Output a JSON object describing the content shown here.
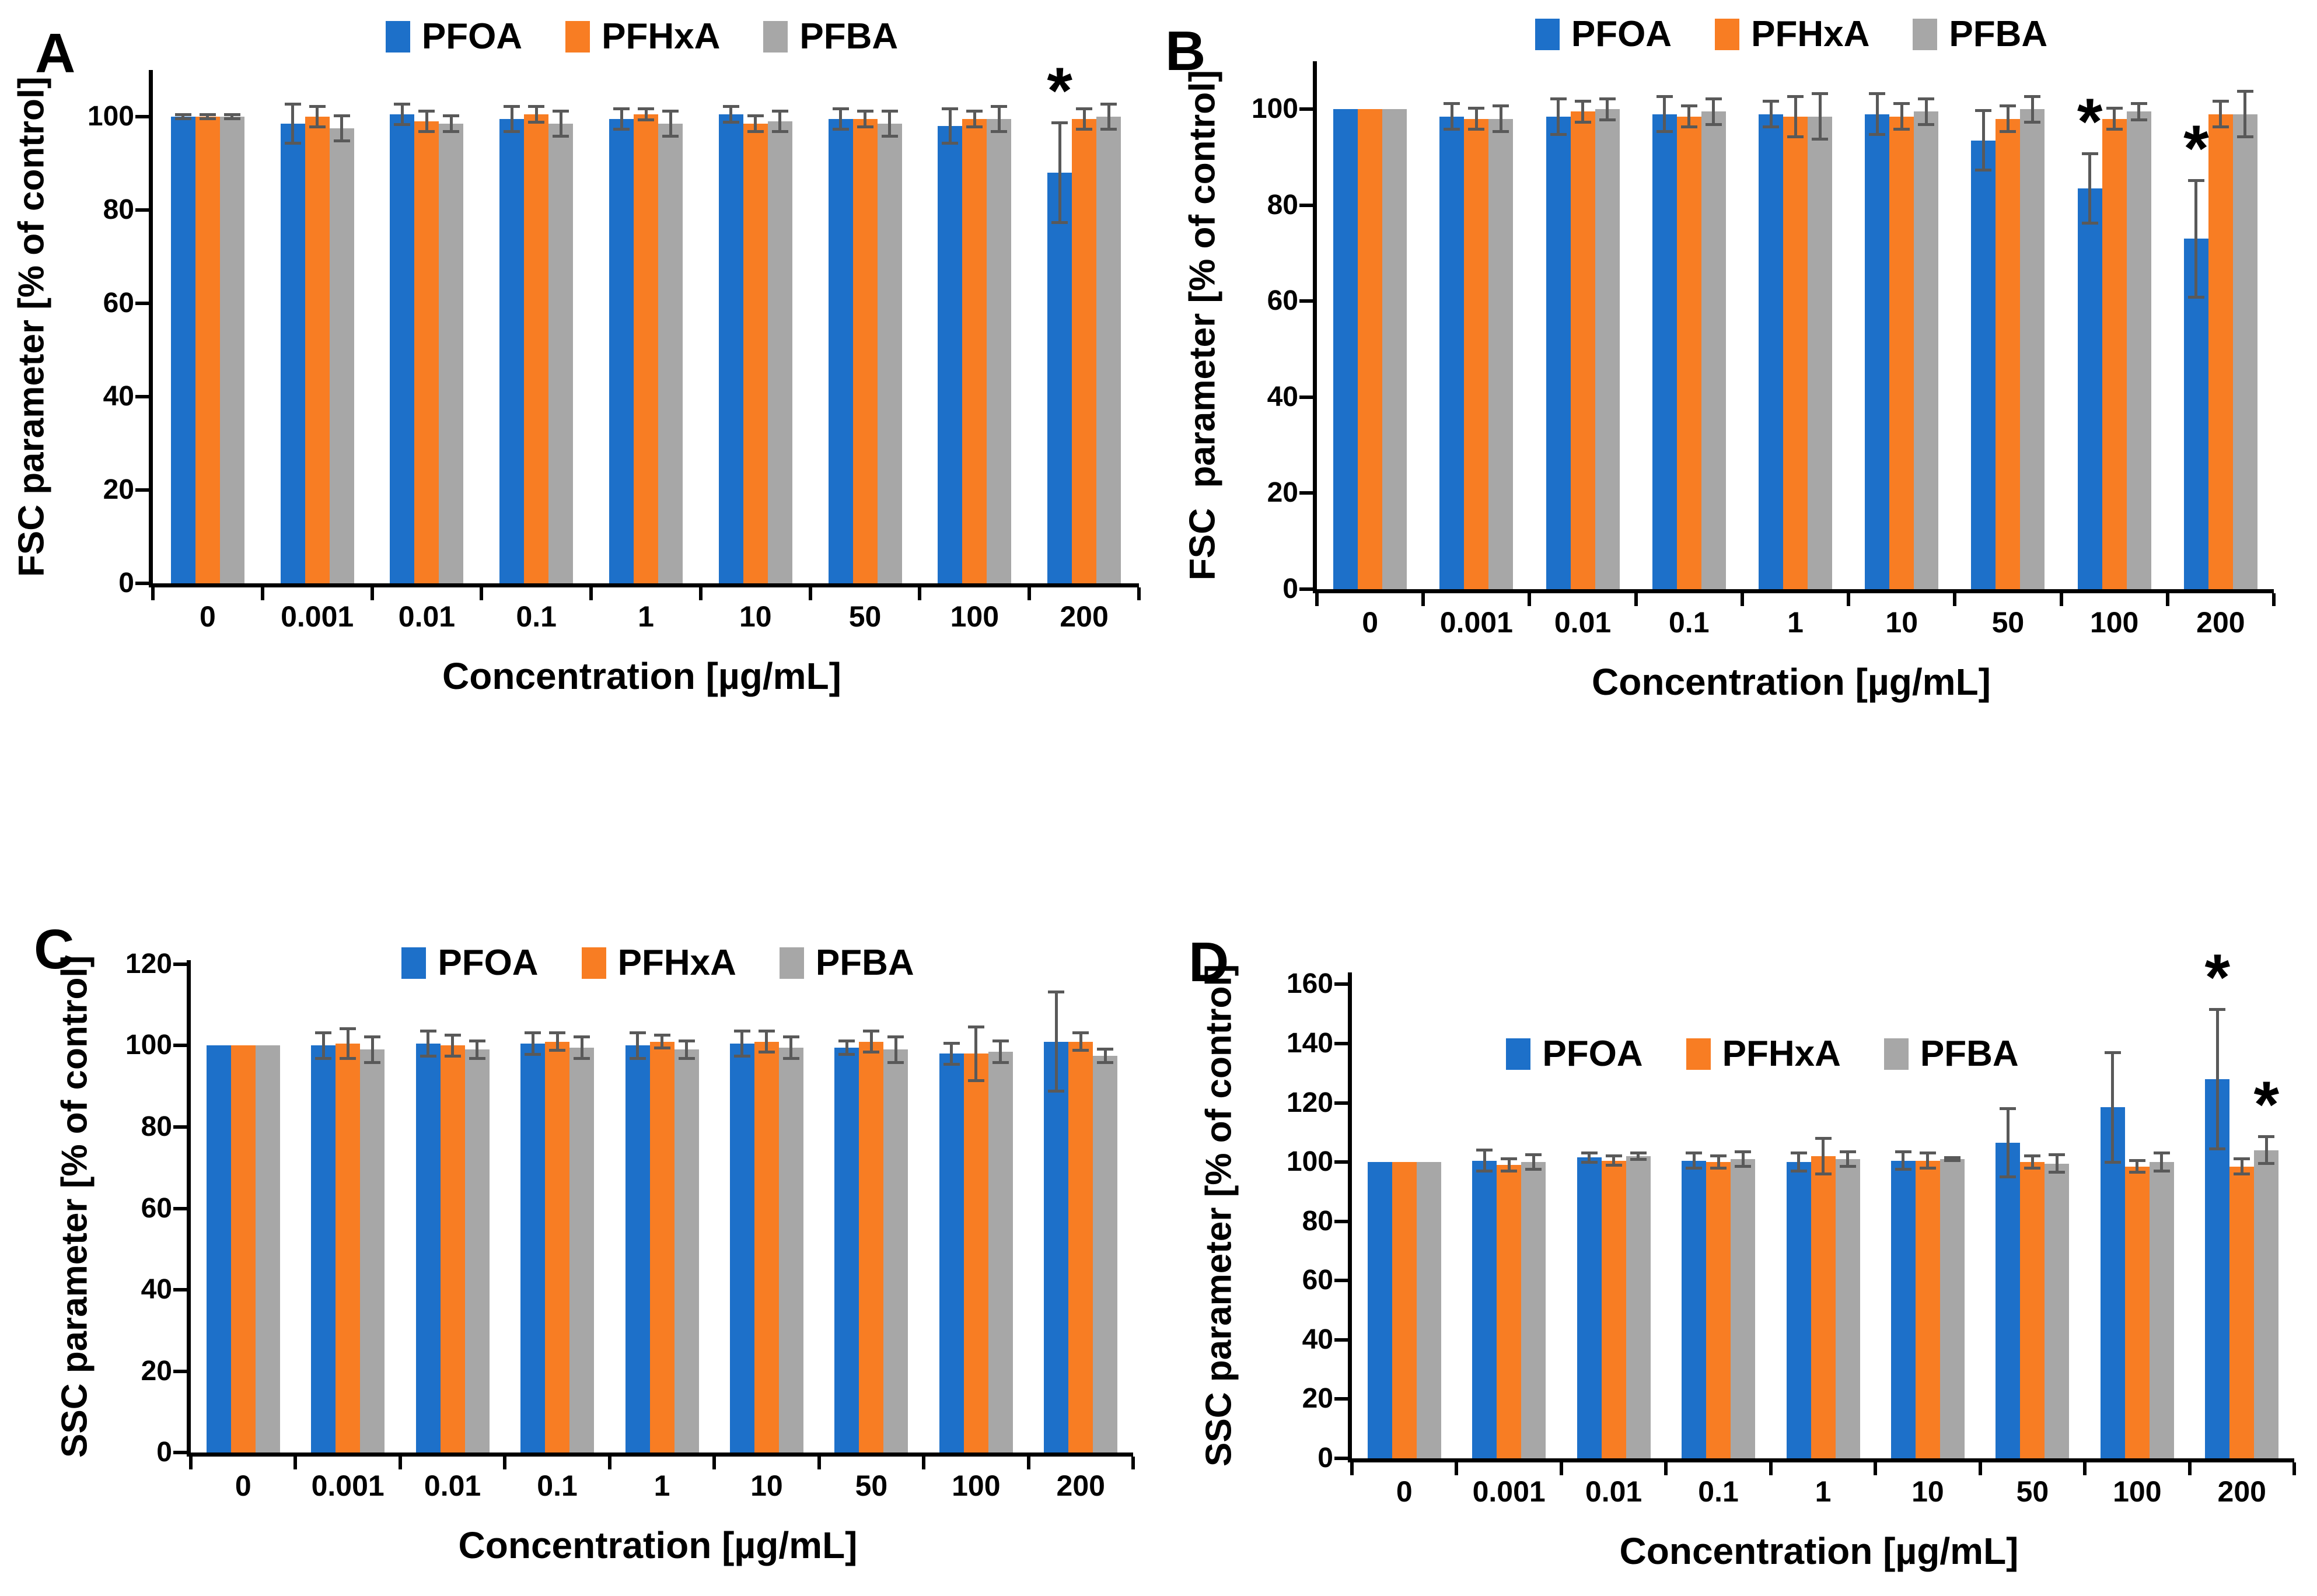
{
  "figure": {
    "colors": {
      "PFOA": "#1d70c9",
      "PFHxA": "#f87d23",
      "PFBA": "#a7a7a7",
      "error_bar": "#595959",
      "axis": "#000000"
    },
    "legend_labels": [
      "PFOA",
      "PFHxA",
      "PFBA"
    ],
    "significance_symbol": "*"
  },
  "chart_data": [
    {
      "panel": "A",
      "type": "bar",
      "ylabel": "FSC parameter [% of control]",
      "xlabel": "Concentration [µg/mL]",
      "categories": [
        "0",
        "0.001",
        "0.01",
        "0.1",
        "1",
        "10",
        "50",
        "100",
        "200"
      ],
      "y_ticks": [
        0,
        20,
        40,
        60,
        80,
        100
      ],
      "ylim": [
        0,
        110
      ],
      "axis_max": 110,
      "grid": false,
      "legend_position": "top-center",
      "series": [
        {
          "name": "PFOA",
          "values": [
            100,
            98.5,
            100.5,
            99.5,
            99.5,
            100.5,
            99.5,
            98,
            88
          ],
          "errors": [
            0.8,
            4.5,
            2.5,
            3,
            2.5,
            2,
            2.5,
            4,
            11
          ]
        },
        {
          "name": "PFHxA",
          "values": [
            100,
            100,
            99,
            100.5,
            100.5,
            98.5,
            99.5,
            99.5,
            99.5
          ],
          "errors": [
            0.8,
            2.5,
            2.5,
            2,
            1.5,
            2,
            2,
            2,
            2.5
          ]
        },
        {
          "name": "PFBA",
          "values": [
            100,
            97.5,
            98.5,
            98.5,
            98.5,
            99,
            98.5,
            99.5,
            100
          ],
          "errors": [
            0.8,
            3,
            2,
            3,
            3,
            2.5,
            3,
            3,
            3
          ]
        }
      ],
      "annotations": [
        {
          "series": "PFOA",
          "category": "200",
          "symbol": "*"
        }
      ]
    },
    {
      "panel": "B",
      "type": "bar",
      "ylabel": "FSC  parameter [% of control]",
      "xlabel": "Concentration [µg/mL]",
      "categories": [
        "0",
        "0.001",
        "0.01",
        "0.1",
        "1",
        "10",
        "50",
        "100",
        "200"
      ],
      "y_ticks": [
        0,
        20,
        40,
        60,
        80,
        100
      ],
      "ylim": [
        0,
        110
      ],
      "axis_max": 110,
      "grid": false,
      "legend_position": "top-center",
      "series": [
        {
          "name": "PFOA",
          "values": [
            100,
            98.5,
            98.5,
            99,
            99,
            99,
            93.5,
            83.5,
            73
          ],
          "errors": [
            0,
            3,
            4,
            4,
            3,
            4.5,
            6.5,
            7.5,
            12.5
          ]
        },
        {
          "name": "PFHxA",
          "values": [
            100,
            98,
            99.5,
            98.5,
            98.5,
            98.5,
            98,
            98,
            99
          ],
          "errors": [
            0,
            2.5,
            2.5,
            2.5,
            4.5,
            3,
            3,
            2.5,
            3
          ]
        },
        {
          "name": "PFBA",
          "values": [
            100,
            98,
            100,
            99.5,
            98.5,
            99.5,
            100,
            99.5,
            99
          ],
          "errors": [
            0,
            3,
            2.5,
            3,
            5,
            3,
            3,
            2,
            5
          ]
        }
      ],
      "annotations": [
        {
          "series": "PFOA",
          "category": "100",
          "symbol": "*"
        },
        {
          "series": "PFOA",
          "category": "200",
          "symbol": "*"
        }
      ]
    },
    {
      "panel": "C",
      "type": "bar",
      "ylabel": "SSC parameter [% of control]",
      "xlabel": "Concentration [µg/mL]",
      "categories": [
        "0",
        "0.001",
        "0.01",
        "0.1",
        "1",
        "10",
        "50",
        "100",
        "200"
      ],
      "y_ticks": [
        0,
        20,
        40,
        60,
        80,
        100,
        120
      ],
      "ylim": [
        0,
        121
      ],
      "axis_max": 121,
      "grid": false,
      "legend_position": "inside-top",
      "series": [
        {
          "name": "PFOA",
          "values": [
            100,
            100,
            100.5,
            100.5,
            100,
            100.5,
            99.5,
            98,
            101
          ],
          "errors": [
            0,
            3.5,
            3.5,
            3,
            3.5,
            3.5,
            2,
            3,
            12.5
          ]
        },
        {
          "name": "PFHxA",
          "values": [
            100,
            100.5,
            100,
            101,
            101,
            101,
            101,
            98,
            101
          ],
          "errors": [
            0,
            4,
            3,
            2.5,
            2,
            3,
            3,
            7,
            2.5
          ]
        },
        {
          "name": "PFBA",
          "values": [
            100,
            99,
            99,
            99.5,
            99,
            99.5,
            99,
            98.5,
            97.5
          ],
          "errors": [
            0,
            3.5,
            2.5,
            3,
            2.5,
            3,
            3.5,
            3,
            2
          ]
        }
      ],
      "annotations": []
    },
    {
      "panel": "D",
      "type": "bar",
      "ylabel": "SSC parameter [% of control]",
      "xlabel": "Concentration [µg/mL]",
      "categories": [
        "0",
        "0.001",
        "0.01",
        "0.1",
        "1",
        "10",
        "50",
        "100",
        "200"
      ],
      "y_ticks": [
        0,
        20,
        40,
        60,
        80,
        100,
        120,
        140,
        160
      ],
      "ylim": [
        0,
        164
      ],
      "axis_max": 164,
      "grid": false,
      "legend_position": "inside-upper-left",
      "series": [
        {
          "name": "PFOA",
          "values": [
            100,
            100.5,
            101.5,
            100.5,
            100,
            100.5,
            106.5,
            118.5,
            128
          ],
          "errors": [
            0,
            4,
            2,
            3,
            3.5,
            3.5,
            12,
            19,
            24
          ]
        },
        {
          "name": "PFHxA",
          "values": [
            100,
            99,
            100.5,
            100,
            102,
            100.5,
            100,
            98.5,
            98.5
          ],
          "errors": [
            0,
            2.5,
            2,
            2.5,
            6.5,
            3,
            2.5,
            2.5,
            3
          ]
        },
        {
          "name": "PFBA",
          "values": [
            100,
            100,
            102,
            101,
            101,
            101,
            99.5,
            100,
            104
          ],
          "errors": [
            0,
            3,
            1.5,
            3,
            3,
            1,
            3.5,
            3.5,
            5
          ]
        }
      ],
      "annotations": [
        {
          "series": "PFOA",
          "category": "200",
          "symbol": "*"
        },
        {
          "series": "PFBA",
          "category": "200",
          "symbol": "*"
        }
      ]
    }
  ]
}
